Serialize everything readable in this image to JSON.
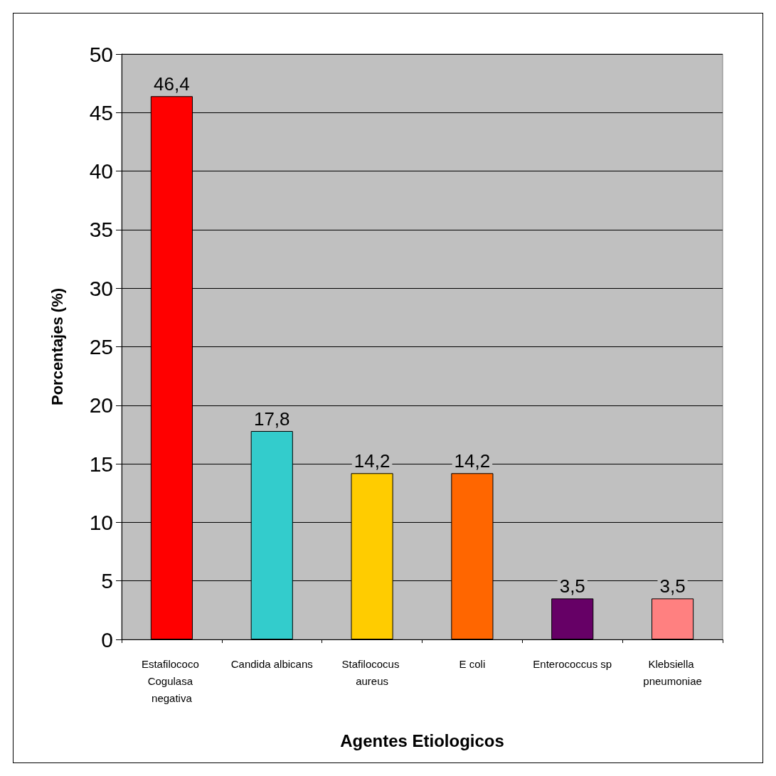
{
  "chart_data": {
    "type": "bar",
    "xlabel": "Agentes Etiologicos",
    "ylabel": "Porcentajes (%)",
    "categories": [
      "Estafilococo Cogulasa negativa",
      "Candida albicans",
      "Stafilococus aureus",
      "E coli",
      "Enterococcus sp",
      "Klebsiella pneumoniae"
    ],
    "values": [
      46.4,
      17.8,
      14.2,
      14.2,
      3.5,
      3.5
    ],
    "colors": [
      "#ff0000",
      "#33cccc",
      "#ffcc00",
      "#ff6600",
      "#660066",
      "#ff8080"
    ],
    "value_labels": [
      "46,4",
      "17,8",
      "14,2",
      "14,2",
      "3,5",
      "3,5"
    ],
    "ylim": [
      0,
      50
    ],
    "yticks": [
      0,
      5,
      10,
      15,
      20,
      25,
      30,
      35,
      40,
      45,
      50
    ],
    "grid": "y"
  }
}
